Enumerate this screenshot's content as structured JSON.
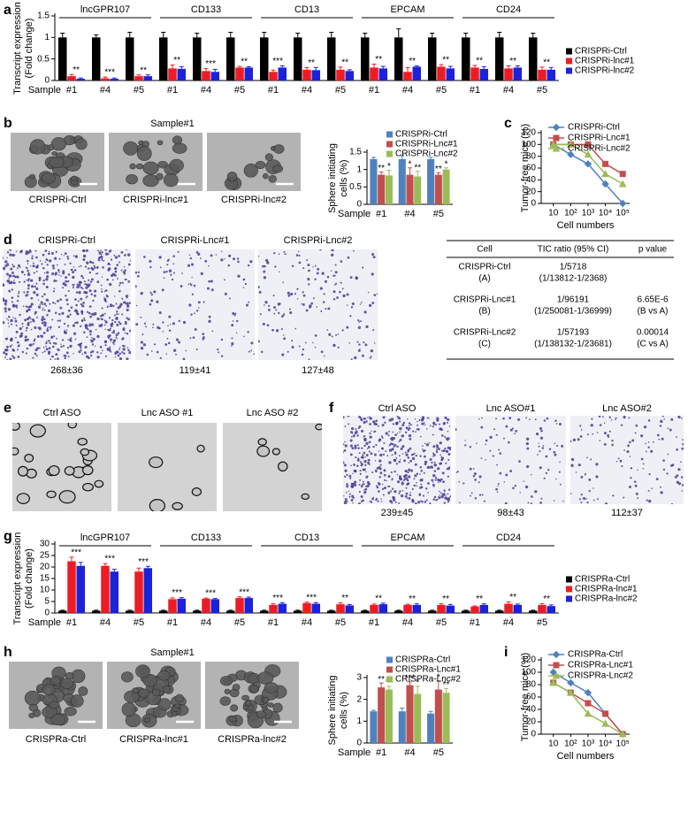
{
  "figure": {
    "letters": [
      "a",
      "b",
      "c",
      "d",
      "e",
      "f",
      "g",
      "h",
      "i"
    ],
    "panel_b": {
      "heading": "Sample#1",
      "captions": [
        "CRISPRi-Ctrl",
        "CRISPRi-lnc#1",
        "CRISPRi-lnc#2"
      ]
    },
    "panel_d": {
      "captions": [
        "CRISPRi-Ctrl",
        "CRISPRi-Lnc#1",
        "CRISPRi-Lnc#2"
      ],
      "counts": [
        "268±36",
        "119±41",
        "127±48"
      ],
      "table": {
        "header": [
          "Cell",
          "TIC ratio (95% CI)",
          "p value"
        ],
        "rows": [
          {
            "cell": [
              "CRISPRi-Ctrl",
              "(A)"
            ],
            "tic": [
              "1/5718",
              "(1/13812-1/2368)"
            ]
          },
          {
            "cell": [
              "CRISPRi-Lnc#1",
              "(B)"
            ],
            "tic": [
              "1/96191",
              "(1/250081-1/36999)"
            ],
            "p": [
              "6.65E-6",
              "(B vs A)"
            ]
          },
          {
            "cell": [
              "CRISPRi-Lnc#2",
              "(C)"
            ],
            "tic": [
              "1/57193",
              "(1/138132-1/23681)"
            ],
            "p": [
              "0.00014",
              "(C vs A)"
            ]
          }
        ]
      }
    },
    "panel_e": {
      "captions": [
        "Ctrl ASO",
        "Lnc ASO #1",
        "Lnc ASO #2"
      ]
    },
    "panel_f": {
      "captions": [
        "Ctrl ASO",
        "Lnc ASO#1",
        "Lnc ASO#2"
      ],
      "counts": [
        "239±45",
        "98±43",
        "112±37"
      ]
    },
    "panel_h": {
      "heading": "Sample#1",
      "captions": [
        "CRISPRa-Ctrl",
        "CRISPRa-lnc#1",
        "CRISPRa-lnc#2"
      ]
    }
  },
  "chart_data": [
    {
      "type": "bar",
      "groups": [
        "lncGPR107",
        "CD133",
        "CD13",
        "EPCAM",
        "CD24"
      ],
      "categories": [
        "#1",
        "#4",
        "#5",
        "#1",
        "#4",
        "#5",
        "#1",
        "#4",
        "#5",
        "#1",
        "#4",
        "#5",
        "#1",
        "#4",
        "#5"
      ],
      "x_label": "Sample",
      "ylabel": [
        "Transcript expression",
        "(Fold change)"
      ],
      "ylim": [
        0,
        1.5
      ],
      "yticks": [
        0,
        0.5,
        1,
        1.5
      ],
      "legend": "right",
      "significance": [
        "**",
        "***",
        "**",
        "**",
        "***",
        "**",
        "***",
        "**",
        "**",
        "**",
        "**",
        "**",
        "**",
        "**",
        "**"
      ],
      "series": [
        {
          "name": "CRISPRi-Ctrl",
          "color": "#000000",
          "values": [
            1,
            1,
            1,
            1,
            1,
            1,
            1,
            1,
            1,
            1,
            1,
            1,
            1,
            1,
            1
          ],
          "errors": [
            0.1,
            0.06,
            0.12,
            0.12,
            0.1,
            0.12,
            0.12,
            0.1,
            0.12,
            0.1,
            0.2,
            0.1,
            0.1,
            0.12,
            0.1
          ]
        },
        {
          "name": "CRISPRi-lnc#1",
          "color": "#ed1c24",
          "values": [
            0.1,
            0.05,
            0.1,
            0.28,
            0.22,
            0.3,
            0.2,
            0.25,
            0.25,
            0.3,
            0.2,
            0.32,
            0.3,
            0.28,
            0.25
          ],
          "errors": [
            0.04,
            0.03,
            0.03,
            0.08,
            0.06,
            0.03,
            0.04,
            0.05,
            0.06,
            0.08,
            0.1,
            0.05,
            0.05,
            0.06,
            0.06
          ]
        },
        {
          "name": "CRISPRi-lnc#2",
          "color": "#1c22d8",
          "values": [
            0.04,
            0.04,
            0.1,
            0.27,
            0.2,
            0.3,
            0.3,
            0.24,
            0.22,
            0.28,
            0.32,
            0.28,
            0.27,
            0.3,
            0.25
          ],
          "errors": [
            0.02,
            0.02,
            0.03,
            0.05,
            0.06,
            0.02,
            0.04,
            0.06,
            0.03,
            0.05,
            0.02,
            0.05,
            0.05,
            0.04,
            0.05
          ]
        }
      ]
    },
    {
      "type": "bar",
      "categories": [
        "#1",
        "#4",
        "#5"
      ],
      "x_label": "Sample",
      "ylabel": [
        "Sphere initiating",
        "cells (%)"
      ],
      "ylim": [
        0,
        1.5
      ],
      "yticks": [
        0,
        0.5,
        1,
        1.5
      ],
      "legend": "top",
      "series": [
        {
          "name": "CRISPRi-Ctrl",
          "color": "#4f81bd",
          "values": [
            1.3,
            1.3,
            1.3
          ],
          "errors": [
            0.05,
            0.1,
            0.05
          ]
        },
        {
          "name": "CRISPRi-Lnc#1",
          "color": "#c0504d",
          "values": [
            0.85,
            0.85,
            0.85
          ],
          "errors": [
            0.08,
            0.2,
            0.06
          ],
          "significance": [
            "**",
            "*",
            "**"
          ]
        },
        {
          "name": "CRISPRi-Lnc#2",
          "color": "#9bbb59",
          "values": [
            0.83,
            0.8,
            1.0
          ],
          "errors": [
            0.15,
            0.15,
            0.05
          ],
          "significance": [
            "*",
            "**",
            "*"
          ]
        }
      ]
    },
    {
      "type": "line",
      "x": [
        10,
        100,
        1000,
        10000,
        100000
      ],
      "xscale": "log",
      "xlim": [
        2,
        250000
      ],
      "xticks": [
        10,
        {
          "value": 100,
          "label": "10²"
        },
        {
          "value": 1000,
          "label": "10³"
        },
        {
          "value": 10000,
          "label": "10⁴"
        },
        {
          "value": 100000,
          "label": "10⁵"
        }
      ],
      "x_label": "Cell numbers",
      "ylabel": "Tumor-free mice (%)",
      "ylim": [
        0,
        120
      ],
      "yticks": [
        0,
        20,
        40,
        60,
        80,
        100,
        120
      ],
      "legend": "top",
      "series": [
        {
          "name": "CRISPRi-Ctrl",
          "color": "#4f81bd",
          "marker": "diamond",
          "values": [
            100,
            83,
            67,
            33,
            0
          ]
        },
        {
          "name": "CRISPRi-Lnc#1",
          "color": "#c0504d",
          "marker": "square",
          "values": [
            100,
            100,
            100,
            67,
            50
          ]
        },
        {
          "name": "CRISPRi-Lnc#2",
          "color": "#9bbb59",
          "marker": "triangle",
          "values": [
            100,
            100,
            83,
            50,
            33
          ]
        }
      ]
    },
    {
      "type": "bar",
      "groups": [
        "lncGPR107",
        "CD133",
        "CD13",
        "EPCAM",
        "CD24"
      ],
      "categories": [
        "#1",
        "#4",
        "#5",
        "#1",
        "#4",
        "#5",
        "#1",
        "#4",
        "#5",
        "#1",
        "#4",
        "#5",
        "#1",
        "#4",
        "#5"
      ],
      "x_label": "Sample",
      "ylabel": [
        "Transcript expression",
        "(Fold change)"
      ],
      "ylim": [
        0,
        30
      ],
      "yticks": [
        0,
        5,
        10,
        15,
        20,
        25,
        30
      ],
      "legend": "right",
      "significance": [
        "***",
        "***",
        "***",
        "***",
        "***",
        "***",
        "***",
        "***",
        "**",
        "**",
        "**",
        "**",
        "**",
        "**",
        "**"
      ],
      "series": [
        {
          "name": "CRISPRa-Ctrl",
          "color": "#000000",
          "values": [
            1,
            1,
            1,
            1,
            1,
            1,
            1,
            1,
            1,
            1,
            1,
            1,
            1,
            1,
            1
          ],
          "errors": [
            0.2,
            0.2,
            0.2,
            0.2,
            0.2,
            0.2,
            0.2,
            0.2,
            0.2,
            0.2,
            0.2,
            0.2,
            0.2,
            0.2,
            0.2
          ]
        },
        {
          "name": "CRISPRa-lnc#1",
          "color": "#ed1c24",
          "values": [
            22.5,
            20.5,
            18,
            6,
            6.2,
            6.5,
            3.5,
            4.3,
            3.8,
            3.5,
            3.5,
            3.5,
            2.8,
            4,
            3.5
          ],
          "errors": [
            1.8,
            1,
            1.5,
            0.6,
            0.3,
            0.5,
            0.5,
            0.4,
            0.6,
            0.4,
            0.3,
            0.5,
            0.3,
            0.8,
            0.6
          ]
        },
        {
          "name": "CRISPRa-lnc#2",
          "color": "#1c22d8",
          "values": [
            20.5,
            18,
            19.5,
            6.2,
            6,
            6.5,
            4,
            4,
            3.3,
            3.8,
            3.5,
            3.2,
            3.5,
            3.5,
            3
          ],
          "errors": [
            1.5,
            1,
            0.8,
            0.5,
            0.3,
            0.4,
            0.5,
            0.5,
            0.4,
            0.5,
            0.5,
            0.5,
            0.5,
            0.4,
            0.5
          ]
        }
      ]
    },
    {
      "type": "bar",
      "categories": [
        "#1",
        "#4",
        "#5"
      ],
      "x_label": "Sample",
      "ylabel": [
        "Sphere initiating",
        "cells (%)"
      ],
      "ylim": [
        0,
        3
      ],
      "yticks": [
        0,
        1,
        2,
        3
      ],
      "legend": "top",
      "series": [
        {
          "name": "CRISPRa-Ctrl",
          "color": "#4f81bd",
          "values": [
            1.45,
            1.45,
            1.35
          ],
          "errors": [
            0.05,
            0.15,
            0.1
          ]
        },
        {
          "name": "CRISPRa-Lnc#1",
          "color": "#c0504d",
          "values": [
            2.55,
            2.65,
            2.45
          ],
          "errors": [
            0.2,
            0.15,
            0.4
          ],
          "significance": [
            "**",
            "***",
            "*"
          ]
        },
        {
          "name": "CRISPRa-Lnc#2",
          "color": "#9bbb59",
          "values": [
            2.45,
            2.25,
            2.3
          ],
          "errors": [
            0.15,
            0.35,
            0.2
          ],
          "significance": [
            "**",
            "*",
            "**"
          ]
        }
      ]
    },
    {
      "type": "line",
      "x": [
        10,
        100,
        1000,
        10000,
        100000
      ],
      "xscale": "log",
      "xlim": [
        2,
        250000
      ],
      "xticks": [
        10,
        {
          "value": 100,
          "label": "10²"
        },
        {
          "value": 1000,
          "label": "10³"
        },
        {
          "value": 10000,
          "label": "10⁴"
        },
        {
          "value": 100000,
          "label": "10⁵"
        }
      ],
      "x_label": "Cell numbers",
      "ylabel": "Tumor-free mice (%)",
      "ylim": [
        0,
        120
      ],
      "yticks": [
        0,
        20,
        40,
        60,
        80,
        100,
        120
      ],
      "legend": "top",
      "series": [
        {
          "name": "CRISPRa-Ctrl",
          "color": "#4f81bd",
          "marker": "diamond",
          "values": [
            100,
            83,
            67,
            33,
            0
          ]
        },
        {
          "name": "CRISPRa-Lnc#1",
          "color": "#c0504d",
          "marker": "square",
          "values": [
            83,
            67,
            50,
            33,
            0
          ]
        },
        {
          "name": "CRISPRa-Lnc#2",
          "color": "#9bbb59",
          "marker": "triangle",
          "values": [
            83,
            67,
            33,
            17,
            0
          ]
        }
      ]
    }
  ]
}
